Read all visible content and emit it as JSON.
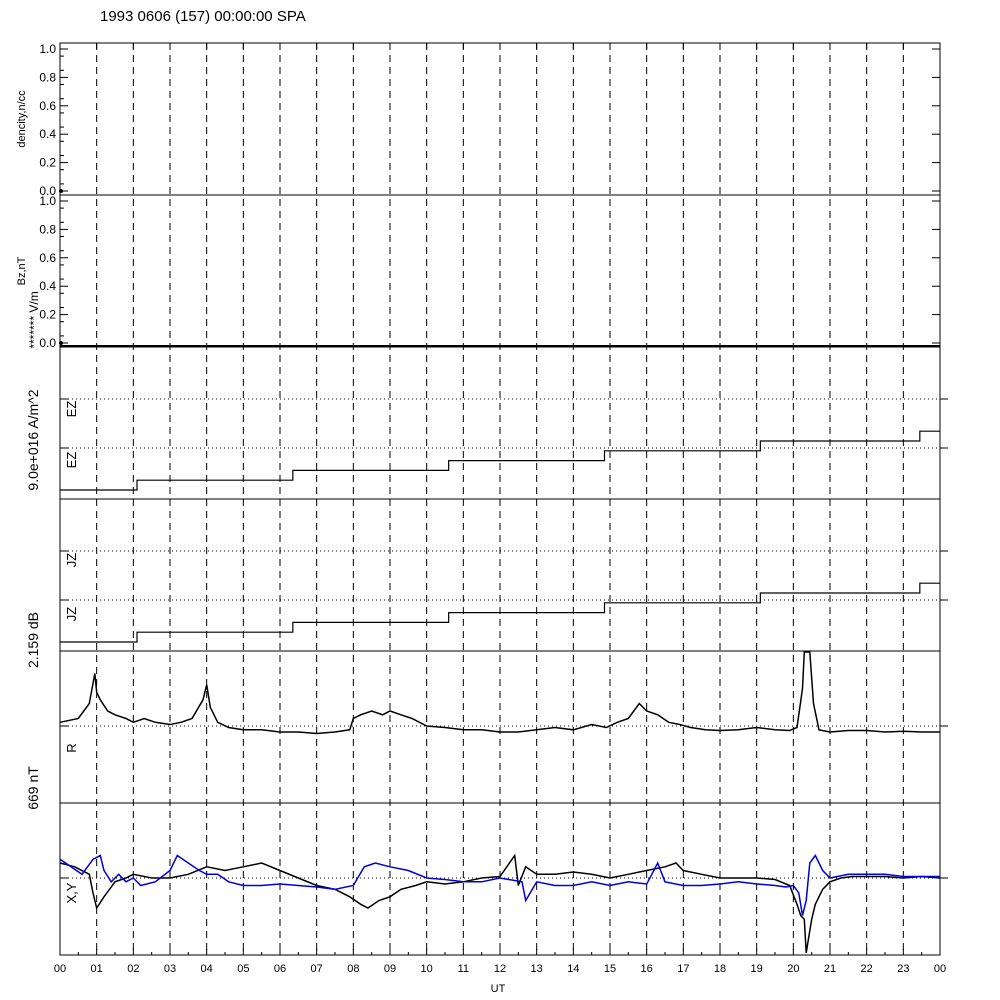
{
  "title": "1993 0606 (157) 00:00:00 SPA",
  "xlabel": "UT",
  "colors": {
    "axes": "#000000",
    "series_primary": "#000000",
    "series_secondary": "#0000dd",
    "background": "#ffffff"
  },
  "chart_data": {
    "type": "line",
    "x_unit": "hour",
    "x_range": [
      0,
      24
    ],
    "x_ticks": [
      "00",
      "01",
      "02",
      "03",
      "04",
      "05",
      "06",
      "07",
      "08",
      "09",
      "10",
      "11",
      "12",
      "13",
      "14",
      "15",
      "16",
      "17",
      "18",
      "19",
      "20",
      "21",
      "22",
      "23",
      "00"
    ],
    "vertical_dashed_gridlines_hours": [
      1,
      2,
      3,
      4,
      5,
      6,
      7,
      8,
      9,
      10,
      11,
      12,
      13,
      14,
      15,
      16,
      17,
      18,
      19,
      20,
      21,
      22,
      23
    ],
    "panels": [
      {
        "id": "density",
        "ylabel": "dencity,n/cc",
        "ylim": [
          0,
          1
        ],
        "yticks": [
          "0.0",
          "0.2",
          "0.4",
          "0.6",
          "0.8",
          "1.0"
        ],
        "series": []
      },
      {
        "id": "bz",
        "ylabel": "Bz,nT",
        "ylim": [
          0,
          1
        ],
        "yticks": [
          "0.0",
          "0.2",
          "0.4",
          "0.6",
          "0.8",
          "1.0"
        ],
        "series": []
      },
      {
        "id": "ez",
        "side_labels": [
          "******* V/m",
          "EZ",
          "EZ",
          "9.0e+016 A/m^2"
        ],
        "step_hours": [
          0,
          2.1,
          6.35,
          10.6,
          14.85,
          19.1,
          23.45,
          24
        ],
        "step_levels": [
          0,
          1,
          2,
          3,
          4,
          5,
          6,
          6
        ]
      },
      {
        "id": "jz",
        "side_labels": [
          "JZ",
          "JZ",
          "2.159 dB"
        ],
        "step_hours": [
          0,
          2.1,
          6.35,
          10.6,
          14.85,
          19.1,
          23.45,
          24
        ],
        "step_levels": [
          0,
          1,
          2,
          3,
          4,
          5,
          6,
          6
        ]
      },
      {
        "id": "r",
        "side_labels": [
          "R",
          "669 nT"
        ],
        "series": [
          {
            "color": "#000000",
            "x": [
              0,
              0.5,
              0.8,
              0.95,
              1.0,
              1.1,
              1.3,
              1.5,
              1.8,
              2.0,
              2.3,
              2.6,
              3.0,
              3.3,
              3.6,
              3.9,
              4.0,
              4.1,
              4.3,
              4.6,
              5.0,
              5.5,
              6.0,
              6.5,
              7.0,
              7.5,
              7.9,
              8.0,
              8.2,
              8.5,
              8.8,
              9.0,
              9.3,
              9.6,
              10.0,
              10.5,
              11.0,
              11.5,
              12.0,
              12.5,
              13.0,
              13.5,
              14.0,
              14.5,
              14.9,
              15.2,
              15.5,
              15.8,
              16.0,
              16.3,
              16.6,
              16.9,
              17.2,
              17.6,
              18.0,
              18.5,
              19.0,
              19.5,
              19.9,
              20.1,
              20.25,
              20.3,
              20.35,
              20.45,
              20.55,
              20.7,
              21.0,
              21.5,
              22.0,
              22.5,
              23.0,
              23.5,
              24.0
            ],
            "y": [
              0.05,
              0.1,
              0.3,
              0.7,
              0.45,
              0.35,
              0.2,
              0.15,
              0.1,
              0.05,
              0.1,
              0.05,
              0.02,
              0.05,
              0.1,
              0.35,
              0.55,
              0.25,
              0.05,
              -0.02,
              -0.05,
              -0.05,
              -0.08,
              -0.08,
              -0.1,
              -0.08,
              -0.05,
              0.1,
              0.15,
              0.2,
              0.15,
              0.2,
              0.15,
              0.1,
              0.0,
              -0.02,
              -0.05,
              -0.05,
              -0.08,
              -0.08,
              -0.05,
              -0.02,
              -0.05,
              0.02,
              -0.02,
              0.05,
              0.1,
              0.3,
              0.2,
              0.15,
              0.05,
              0.02,
              -0.02,
              -0.05,
              -0.06,
              -0.05,
              -0.02,
              -0.05,
              -0.06,
              -0.02,
              0.5,
              1.0,
              1.0,
              1.0,
              0.3,
              -0.05,
              -0.08,
              -0.06,
              -0.06,
              -0.08,
              -0.07,
              -0.08,
              -0.08
            ]
          }
        ]
      },
      {
        "id": "xy",
        "side_labels": [
          "X,Y"
        ],
        "series": [
          {
            "color": "#000000",
            "x": [
              0,
              0.4,
              0.8,
              0.9,
              1.0,
              1.2,
              1.5,
              1.8,
              2.0,
              2.5,
              3.0,
              3.5,
              4.0,
              4.5,
              5.0,
              5.5,
              6.0,
              6.5,
              7.0,
              7.5,
              7.9,
              8.2,
              8.4,
              8.7,
              9.0,
              9.3,
              9.7,
              10.0,
              10.5,
              11.0,
              11.5,
              12.0,
              12.4,
              12.5,
              12.7,
              13.0,
              13.5,
              14.0,
              14.5,
              15.0,
              15.5,
              16.0,
              16.5,
              16.8,
              17.0,
              17.5,
              18.0,
              18.5,
              19.0,
              19.5,
              19.9,
              20.1,
              20.2,
              20.3,
              20.35,
              20.4,
              20.5,
              20.6,
              20.8,
              21.0,
              21.3,
              21.6,
              22.0,
              22.5,
              23.0,
              23.5,
              24.0
            ],
            "y": [
              0.2,
              0.15,
              0.05,
              -0.2,
              -0.4,
              -0.25,
              -0.05,
              0.0,
              0.05,
              0.0,
              0.0,
              0.05,
              0.15,
              0.1,
              0.15,
              0.2,
              0.1,
              0.0,
              -0.1,
              -0.15,
              -0.25,
              -0.35,
              -0.4,
              -0.3,
              -0.25,
              -0.15,
              -0.1,
              -0.05,
              -0.08,
              -0.05,
              0.0,
              0.02,
              0.3,
              -0.1,
              0.15,
              0.05,
              0.05,
              0.08,
              0.05,
              0.0,
              0.05,
              0.1,
              0.15,
              0.2,
              0.1,
              0.05,
              0.0,
              0.0,
              0.0,
              -0.02,
              -0.1,
              -0.35,
              -0.5,
              -0.55,
              -1.0,
              -0.85,
              -0.55,
              -0.35,
              -0.15,
              -0.05,
              0.0,
              0.02,
              0.02,
              0.02,
              0.0,
              0.02,
              0.0
            ]
          },
          {
            "color": "#0000dd",
            "x": [
              0,
              0.3,
              0.6,
              0.9,
              1.1,
              1.2,
              1.4,
              1.6,
              1.8,
              2.0,
              2.2,
              2.6,
              3.0,
              3.2,
              3.5,
              3.8,
              4.0,
              4.3,
              4.6,
              5.0,
              5.5,
              6.0,
              6.5,
              7.0,
              7.5,
              8.0,
              8.3,
              8.6,
              9.0,
              9.5,
              10.0,
              10.5,
              11.0,
              11.5,
              12.0,
              12.6,
              12.7,
              13.0,
              13.5,
              14.0,
              14.5,
              15.0,
              15.5,
              16.0,
              16.3,
              16.5,
              17.0,
              17.5,
              18.0,
              18.5,
              19.0,
              19.5,
              19.8,
              20.0,
              20.15,
              20.25,
              20.35,
              20.45,
              20.6,
              20.8,
              21.0,
              21.5,
              22.0,
              22.5,
              23.0,
              23.5,
              24.0
            ],
            "y": [
              0.25,
              0.15,
              0.05,
              0.25,
              0.3,
              0.1,
              -0.05,
              0.05,
              -0.05,
              0.0,
              -0.1,
              -0.05,
              0.1,
              0.3,
              0.2,
              0.1,
              0.05,
              0.05,
              -0.05,
              -0.1,
              -0.1,
              -0.08,
              -0.1,
              -0.12,
              -0.15,
              -0.1,
              0.15,
              0.2,
              0.15,
              0.1,
              0.0,
              -0.02,
              -0.05,
              -0.05,
              0.0,
              -0.05,
              -0.3,
              -0.05,
              -0.1,
              -0.1,
              -0.05,
              -0.1,
              -0.05,
              -0.08,
              0.2,
              -0.05,
              -0.1,
              -0.1,
              -0.08,
              -0.05,
              -0.08,
              -0.1,
              -0.12,
              -0.1,
              -0.2,
              -0.5,
              -0.3,
              0.2,
              0.3,
              0.1,
              0.0,
              0.05,
              0.05,
              0.05,
              0.02,
              0.02,
              0.02
            ]
          }
        ]
      }
    ]
  }
}
